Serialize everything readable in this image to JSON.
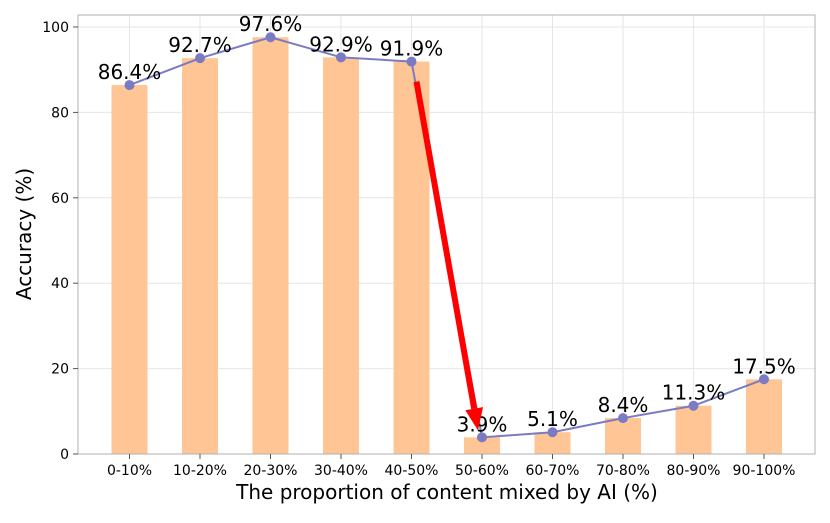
{
  "chart_data": {
    "type": "bar",
    "categories": [
      "0-10%",
      "10-20%",
      "20-30%",
      "30-40%",
      "40-50%",
      "50-60%",
      "60-70%",
      "70-80%",
      "80-90%",
      "90-100%"
    ],
    "values": [
      86.4,
      92.7,
      97.6,
      92.9,
      91.9,
      3.9,
      5.1,
      8.4,
      11.3,
      17.5
    ],
    "data_labels": [
      "86.4%",
      "92.7%",
      "97.6%",
      "92.9%",
      "91.9%",
      "3.9%",
      "5.1%",
      "8.4%",
      "11.3%",
      "17.5%"
    ],
    "line_overlay": true,
    "xlabel": "The proportion of content mixed by AI (%)",
    "ylabel": "Accuracy (%)",
    "ylim": [
      0,
      100
    ],
    "yticks": [
      0,
      20,
      40,
      60,
      80,
      100
    ],
    "grid": true,
    "annotation_arrow": {
      "from_category": "40-50%",
      "to_category": "50-60%"
    },
    "colors": {
      "bar": "#ffc594",
      "line": "#7b7bc4",
      "marker": "#7b7bc4",
      "arrow": "#ff0000",
      "grid": "#e6e6e6",
      "axis": "#b0b0b0"
    }
  }
}
